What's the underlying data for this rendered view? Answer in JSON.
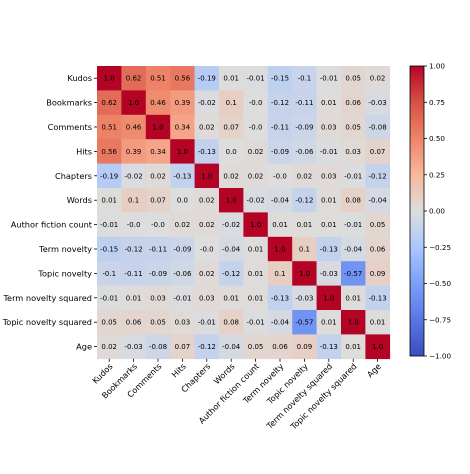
{
  "chart_data": {
    "type": "heatmap",
    "title": "",
    "xlabel": "",
    "ylabel": "",
    "variables": [
      "Kudos",
      "Bookmarks",
      "Comments",
      "Hits",
      "Chapters",
      "Words",
      "Author fiction count",
      "Term novelty",
      "Topic novelty",
      "Term novelty squared",
      "Topic novelty squared",
      "Age"
    ],
    "matrix": [
      [
        "1.0",
        "0.62",
        "0.51",
        "0.56",
        "-0.19",
        "0.01",
        "-0.01",
        "-0.15",
        "-0.1",
        "-0.01",
        "0.05",
        "0.02"
      ],
      [
        "0.62",
        "1.0",
        "0.46",
        "0.39",
        "-0.02",
        "0.1",
        "-0.0",
        "-0.12",
        "-0.11",
        "0.01",
        "0.06",
        "-0.03"
      ],
      [
        "0.51",
        "0.46",
        "1.0",
        "0.34",
        "0.02",
        "0.07",
        "-0.0",
        "-0.11",
        "-0.09",
        "0.03",
        "0.05",
        "-0.08"
      ],
      [
        "0.56",
        "0.39",
        "0.34",
        "1.0",
        "-0.13",
        "0.0",
        "0.02",
        "-0.09",
        "-0.06",
        "-0.01",
        "0.03",
        "0.07"
      ],
      [
        "-0.19",
        "-0.02",
        "0.02",
        "-0.13",
        "1.0",
        "0.02",
        "0.02",
        "-0.0",
        "0.02",
        "0.03",
        "-0.01",
        "-0.12"
      ],
      [
        "0.01",
        "0.1",
        "0.07",
        "0.0",
        "0.02",
        "1.0",
        "-0.02",
        "-0.04",
        "-0.12",
        "0.01",
        "0.08",
        "-0.04"
      ],
      [
        "-0.01",
        "-0.0",
        "-0.0",
        "0.02",
        "0.02",
        "-0.02",
        "1.0",
        "0.01",
        "0.01",
        "0.01",
        "-0.01",
        "0.05"
      ],
      [
        "-0.15",
        "-0.12",
        "-0.11",
        "-0.09",
        "-0.0",
        "-0.04",
        "0.01",
        "1.0",
        "0.1",
        "-0.13",
        "-0.04",
        "0.06"
      ],
      [
        "-0.1",
        "-0.11",
        "-0.09",
        "-0.06",
        "0.02",
        "-0.12",
        "0.01",
        "0.1",
        "1.0",
        "-0.03",
        "-0.57",
        "0.09"
      ],
      [
        "-0.01",
        "0.01",
        "0.03",
        "-0.01",
        "0.03",
        "0.01",
        "0.01",
        "-0.13",
        "-0.03",
        "1.0",
        "0.01",
        "-0.13"
      ],
      [
        "0.05",
        "0.06",
        "0.05",
        "0.03",
        "-0.01",
        "0.08",
        "-0.01",
        "-0.04",
        "-0.57",
        "0.01",
        "1.0",
        "0.01"
      ],
      [
        "0.02",
        "-0.03",
        "-0.08",
        "0.07",
        "-0.12",
        "-0.04",
        "0.05",
        "0.06",
        "0.09",
        "-0.13",
        "0.01",
        "1.0"
      ]
    ],
    "colorbar": {
      "vmin": -1.0,
      "vmax": 1.0,
      "ticks": [
        "1.00",
        "0.75",
        "0.50",
        "0.25",
        "0.00",
        "−0.25",
        "−0.50",
        "−0.75",
        "−1.00"
      ],
      "tick_values": [
        1.0,
        0.75,
        0.5,
        0.25,
        0.0,
        -0.25,
        -0.5,
        -0.75,
        -1.0
      ]
    },
    "colormap": "coolwarm",
    "colors": {
      "low": "#3b4cc0",
      "mid": "#dddddd",
      "high": "#b40426"
    },
    "grid": false,
    "x_tick_rotation": "45 degrees"
  }
}
